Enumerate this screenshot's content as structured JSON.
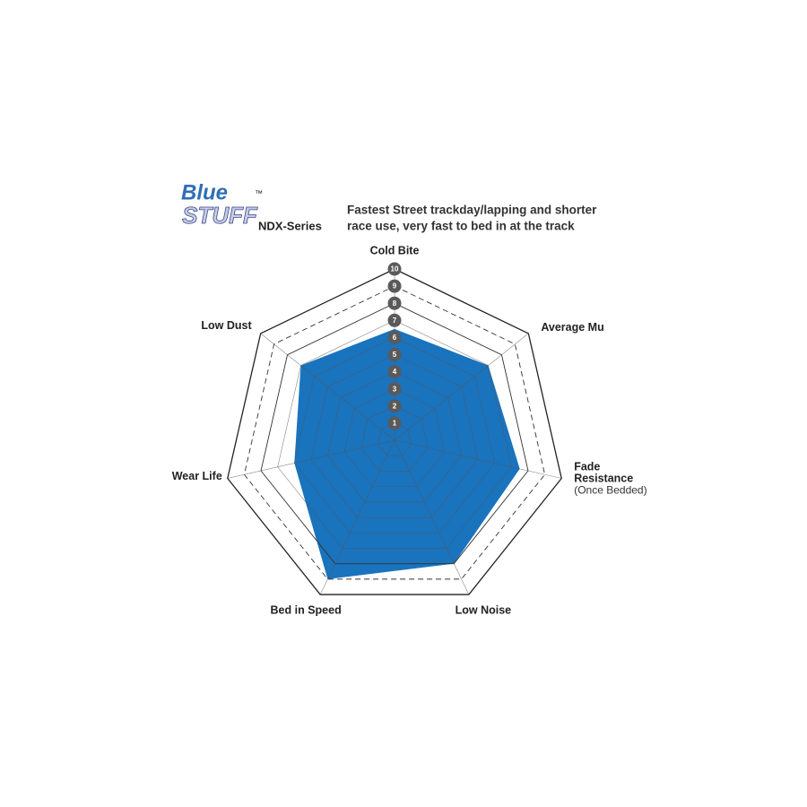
{
  "chart_data": {
    "type": "radar",
    "logo": [
      "Blue",
      "Stuff"
    ],
    "trademark": "™",
    "subtitle": "NDX-Series",
    "title": [
      "Fastest Street trackday/lapping and shorter",
      "race use, very fast to bed in at the track"
    ],
    "categories": [
      "Cold Bite",
      "Average Mu",
      "Fade Resistance",
      "Low Noise",
      "Bed in Speed",
      "Wear Life",
      "Low Dust"
    ],
    "annotation": "(Once Bedded)",
    "values": [
      6.5,
      7,
      7.5,
      8,
      9,
      6,
      7
    ],
    "color": "#1a73bd",
    "ylim": [
      0,
      10
    ],
    "yticks": [
      1,
      2,
      3,
      4,
      5,
      6,
      7,
      8,
      9,
      10
    ]
  }
}
